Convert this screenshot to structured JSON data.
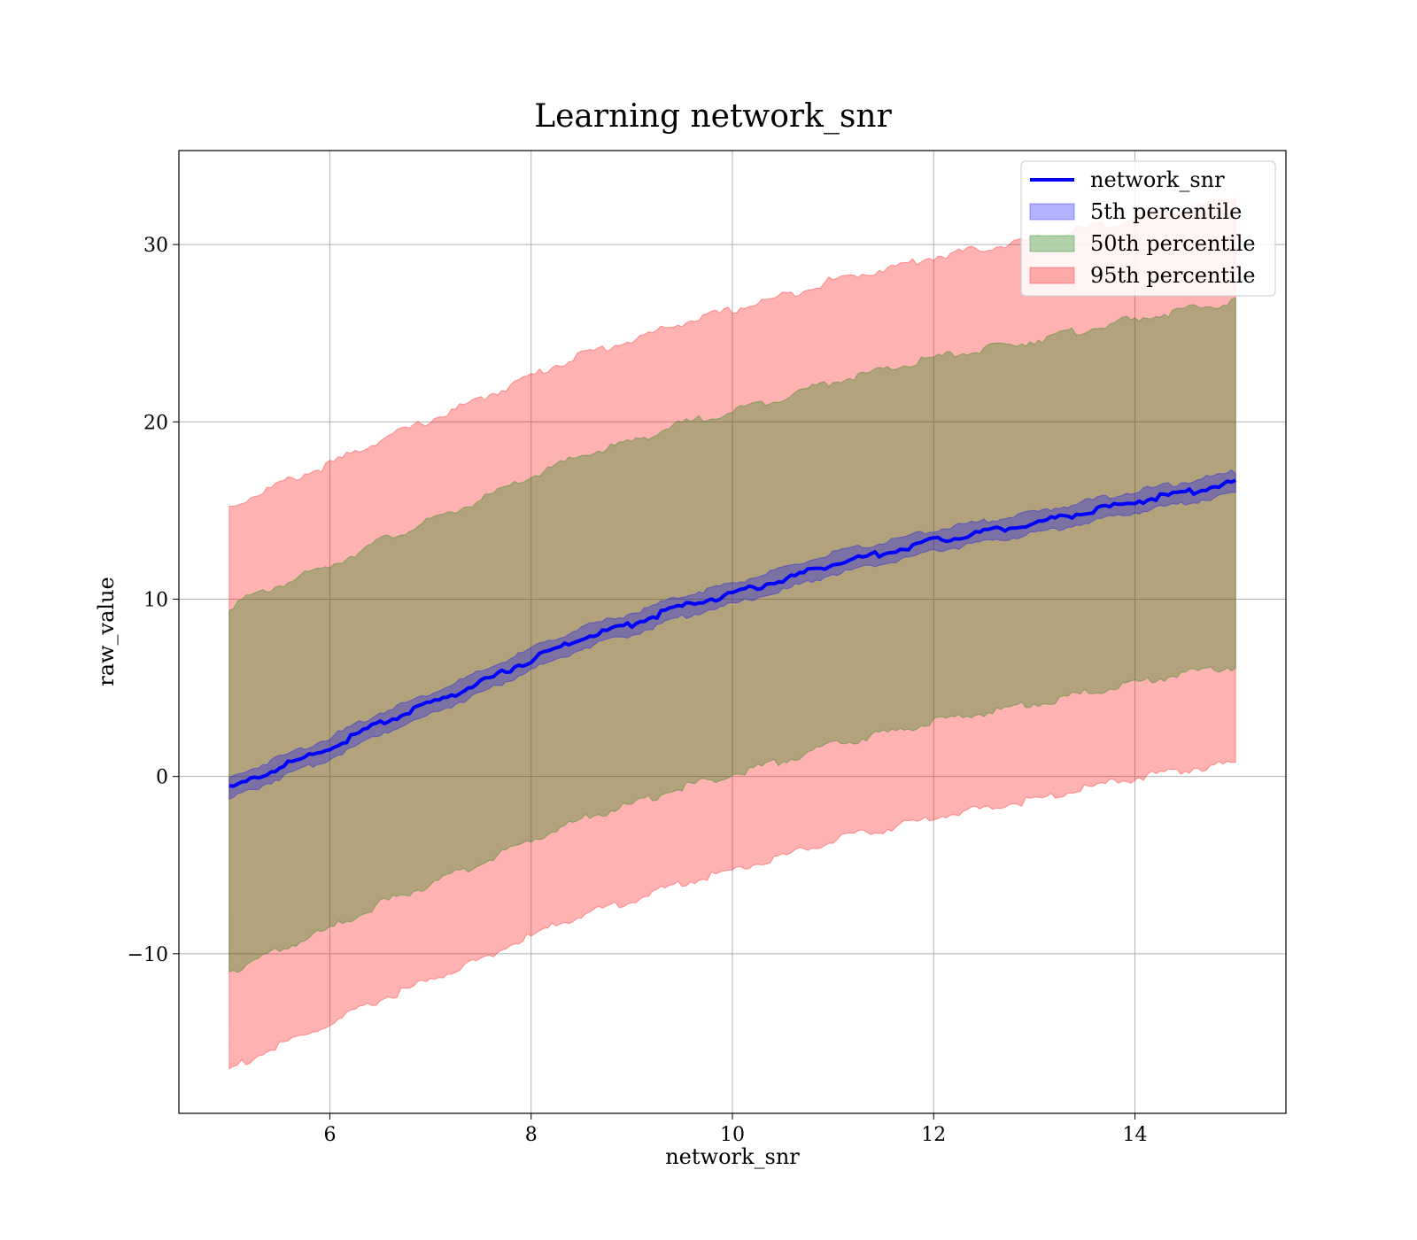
{
  "chart_data": {
    "type": "line",
    "title": "Learning network_snr",
    "xlabel": "network_snr",
    "ylabel": "raw_value",
    "xlim": [
      4.5,
      15.5
    ],
    "ylim": [
      -19,
      35.3
    ],
    "xticks": [
      6,
      8,
      10,
      12,
      14
    ],
    "yticks": [
      -10,
      0,
      10,
      20,
      30
    ],
    "xtick_labels": [
      "6",
      "8",
      "10",
      "12",
      "14"
    ],
    "ytick_labels": [
      "−10",
      "0",
      "10",
      "20",
      "30"
    ],
    "grid": true,
    "legend_position": "top-right",
    "line": {
      "name": "network_snr",
      "color": "#0000ff",
      "x": [
        5,
        5.5,
        6,
        6.5,
        7,
        7.5,
        8,
        8.5,
        9,
        9.5,
        10,
        10.5,
        11,
        11.5,
        12,
        12.5,
        13,
        13.5,
        14,
        14.5,
        15
      ],
      "y": [
        -0.7,
        0.5,
        1.6,
        3.0,
        4.1,
        5.3,
        6.6,
        7.8,
        8.6,
        9.6,
        10.3,
        11.1,
        12.0,
        12.6,
        13.3,
        13.8,
        14.3,
        14.9,
        15.5,
        16.0,
        16.6
      ]
    },
    "bands": [
      {
        "name": "95th percentile",
        "color": "#ff0000",
        "opacity": 0.3,
        "x": [
          5,
          5.5,
          6,
          6.5,
          7,
          7.5,
          8,
          8.5,
          9,
          9.5,
          10,
          10.5,
          11,
          11.5,
          12,
          12.5,
          13,
          13.5,
          14,
          14.5,
          15
        ],
        "lower": [
          -16.5,
          -15.2,
          -14.0,
          -12.6,
          -11.5,
          -10.3,
          -9.0,
          -7.8,
          -7.0,
          -6.0,
          -5.3,
          -4.5,
          -3.6,
          -3.0,
          -2.3,
          -1.8,
          -1.3,
          -0.7,
          -0.1,
          0.4,
          0.7
        ],
        "upper": [
          15.2,
          16.5,
          17.6,
          19.0,
          20.1,
          21.3,
          22.6,
          23.8,
          24.6,
          25.6,
          26.3,
          27.1,
          28.0,
          28.6,
          29.3,
          29.8,
          30.3,
          30.9,
          31.5,
          32.0,
          32.6
        ]
      },
      {
        "name": "50th percentile",
        "color": "#008000",
        "opacity": 0.3,
        "x": [
          5,
          5.5,
          6,
          6.5,
          7,
          7.5,
          8,
          8.5,
          9,
          9.5,
          10,
          10.5,
          11,
          11.5,
          12,
          12.5,
          13,
          13.5,
          14,
          14.5,
          15
        ],
        "lower": [
          -11.0,
          -9.8,
          -8.6,
          -7.2,
          -6.1,
          -4.9,
          -3.6,
          -2.4,
          -1.6,
          -0.6,
          0.1,
          0.9,
          1.8,
          2.4,
          3.1,
          3.6,
          4.1,
          4.7,
          5.3,
          5.8,
          6.2
        ],
        "upper": [
          9.6,
          10.8,
          11.9,
          13.3,
          14.4,
          15.6,
          16.9,
          18.1,
          18.9,
          19.9,
          20.6,
          21.4,
          22.3,
          22.9,
          23.6,
          24.1,
          24.6,
          25.2,
          25.8,
          26.3,
          26.8
        ]
      },
      {
        "name": "5th percentile",
        "color": "#0000ff",
        "opacity": 0.3,
        "x": [
          5,
          5.5,
          6,
          6.5,
          7,
          7.5,
          8,
          8.5,
          9,
          9.5,
          10,
          10.5,
          11,
          11.5,
          12,
          12.5,
          13,
          13.5,
          14,
          14.5,
          15
        ],
        "lower": [
          -1.3,
          -0.1,
          1.0,
          2.4,
          3.5,
          4.7,
          6.0,
          7.2,
          8.0,
          9.0,
          9.7,
          10.5,
          11.4,
          12.0,
          12.7,
          13.2,
          13.7,
          14.3,
          14.9,
          15.4,
          16.0
        ],
        "upper": [
          -0.1,
          1.1,
          2.2,
          3.6,
          4.7,
          5.9,
          7.2,
          8.4,
          9.2,
          10.2,
          10.9,
          11.7,
          12.6,
          13.2,
          13.9,
          14.4,
          14.9,
          15.5,
          16.1,
          16.6,
          17.2
        ]
      }
    ],
    "legend": [
      "network_snr",
      "5th percentile",
      "50th percentile",
      "95th percentile"
    ]
  }
}
